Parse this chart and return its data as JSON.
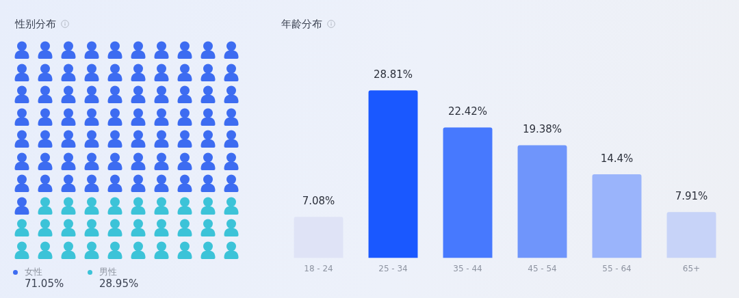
{
  "chart_data": [
    {
      "type": "other",
      "title": "性别分布",
      "series": [
        {
          "name": "女性",
          "color": "#3d6cf1",
          "values": [
            71.05
          ],
          "value_labels": [
            "71.05%"
          ]
        },
        {
          "name": "男性",
          "color": "#3cc3d8",
          "values": [
            28.95
          ],
          "value_labels": [
            "28.95%"
          ]
        }
      ],
      "legend": "bottom left"
    },
    {
      "type": "bar",
      "title": "年龄分布",
      "categories": [
        "18 - 24",
        "25 - 34",
        "35 - 44",
        "45 - 54",
        "55 - 64",
        "65+"
      ],
      "values": [
        7.08,
        28.81,
        22.42,
        19.38,
        14.4,
        7.91
      ],
      "colors": [
        "#dfe3f6",
        "#1a58ff",
        "#4779fe",
        "#6f95fb",
        "#9ab4fb",
        "#c7d3f8"
      ],
      "value_labels": [
        "7.08%",
        "28.81%",
        "22.42%",
        "19.38%",
        "14.4%",
        "7.91%"
      ]
    }
  ]
}
